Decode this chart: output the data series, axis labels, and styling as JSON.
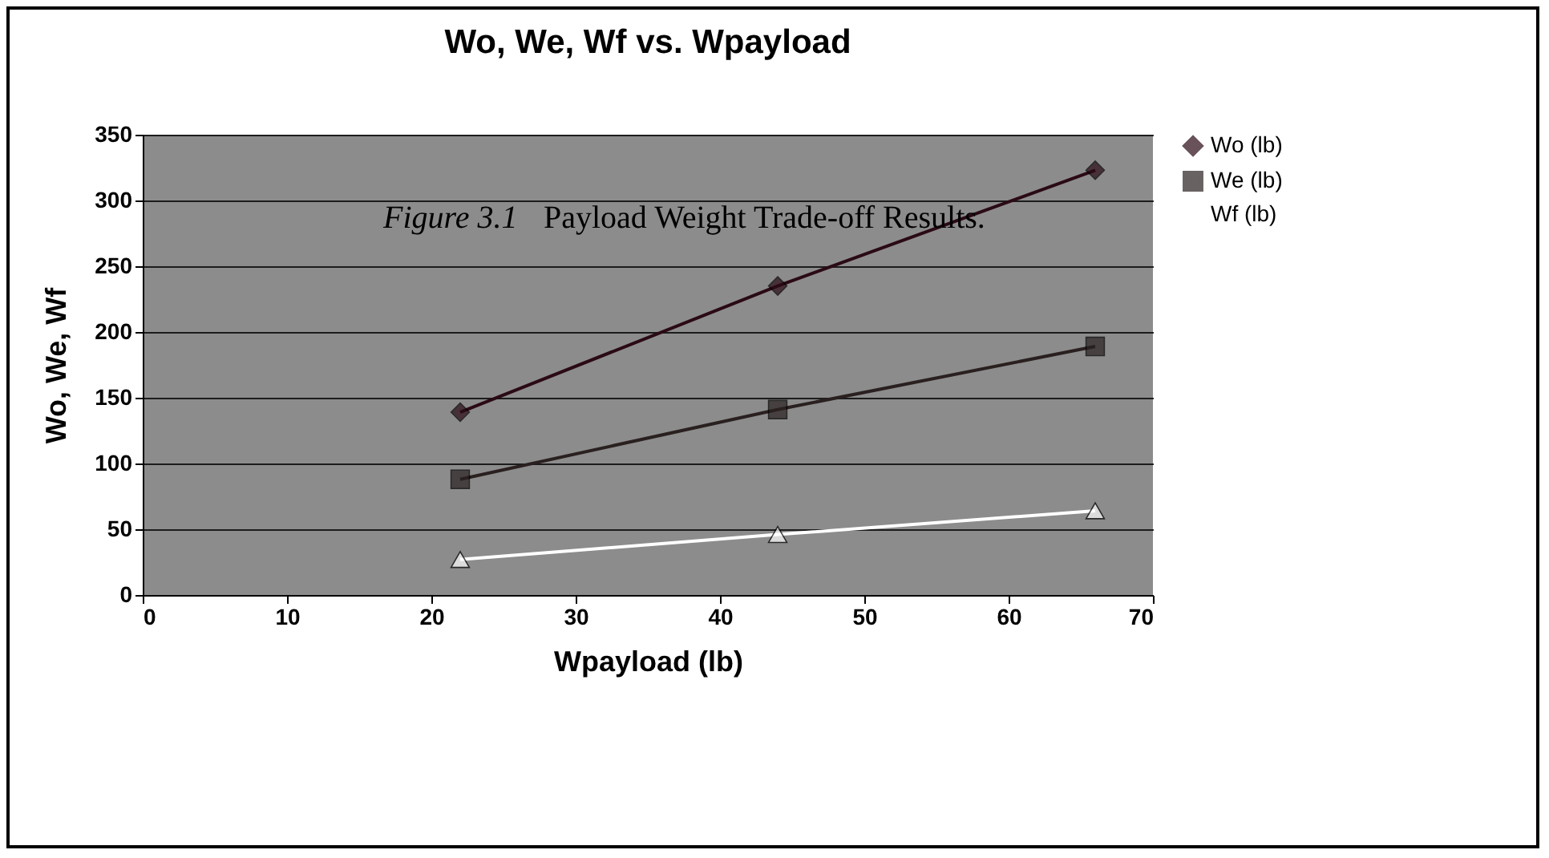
{
  "chart_data": {
    "type": "line",
    "title": "Wo, We, Wf vs. Wpayload",
    "xlabel": "Wpayload  (lb)",
    "ylabel": "Wo, We, Wf",
    "annotations": [
      "Figure 3.1  Payload Weight Trade-off Results."
    ],
    "x": [
      22,
      44,
      66
    ],
    "series": [
      {
        "name": "Wo (lb)",
        "color": "#2a0a14",
        "marker": "diamond",
        "values": [
          139,
          235,
          323
        ]
      },
      {
        "name": "We (lb)",
        "color": "#2a2020",
        "marker": "square",
        "values": [
          88,
          141,
          189
        ]
      },
      {
        "name": "Wf (lb)",
        "color": "#ffffff",
        "marker": "triangle",
        "values": [
          27,
          46,
          64
        ]
      }
    ],
    "xlim": [
      0,
      70
    ],
    "xticks": [
      0,
      10,
      20,
      30,
      40,
      50,
      60,
      70
    ],
    "ylim": [
      0,
      350
    ],
    "yticks": [
      0,
      50,
      100,
      150,
      200,
      250,
      300,
      350
    ],
    "grid": "y",
    "legend": "right",
    "line_style": "solid"
  }
}
